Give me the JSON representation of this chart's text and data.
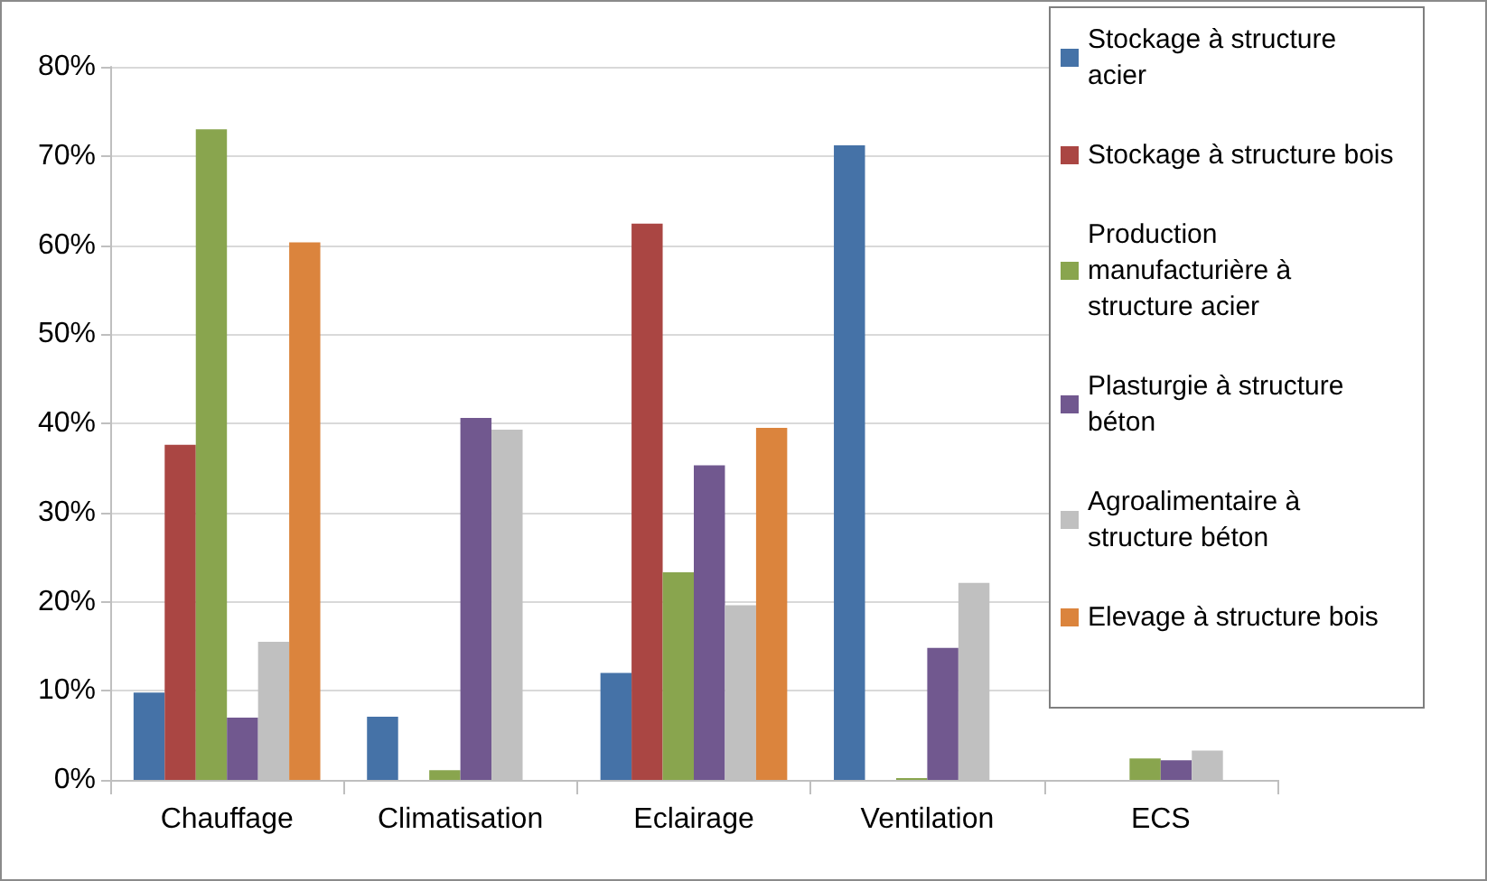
{
  "chart_data": {
    "type": "bar",
    "categories": [
      "Chauffage",
      "Climatisation",
      "Eclairage",
      "Ventilation",
      "ECS"
    ],
    "series": [
      {
        "name": "Stockage à structure acier",
        "color": "#4572a7",
        "values": [
          9.8,
          7.1,
          12,
          71.2,
          null
        ]
      },
      {
        "name": "Stockage à structure bois",
        "color": "#aa4643",
        "values": [
          37.6,
          null,
          62.4,
          null,
          null
        ]
      },
      {
        "name": "Production manufacturière à structure acier",
        "color": "#89a54e",
        "values": [
          73,
          1.1,
          23.3,
          0.2,
          2.4
        ]
      },
      {
        "name": "Plasturgie à structure béton",
        "color": "#71588f",
        "values": [
          7,
          40.6,
          35.3,
          14.8,
          2.2
        ]
      },
      {
        "name": "Agroalimentaire à structure béton",
        "color": "#c0c0c0",
        "values": [
          15.5,
          39.3,
          19.6,
          22.1,
          3.3
        ]
      },
      {
        "name": "Elevage à structure bois",
        "color": "#db843d",
        "values": [
          60.3,
          null,
          39.5,
          null,
          null
        ]
      }
    ],
    "ylim": [
      0,
      80
    ],
    "yticks": [
      {
        "value": 0,
        "label": "0%"
      },
      {
        "value": 10,
        "label": "10%"
      },
      {
        "value": 20,
        "label": "20%"
      },
      {
        "value": 30,
        "label": "30%"
      },
      {
        "value": 40,
        "label": "40%"
      },
      {
        "value": 50,
        "label": "50%"
      },
      {
        "value": 60,
        "label": "60%"
      },
      {
        "value": 70,
        "label": "70%"
      },
      {
        "value": 80,
        "label": "80%"
      }
    ],
    "grid": "y",
    "legend": "top right"
  }
}
